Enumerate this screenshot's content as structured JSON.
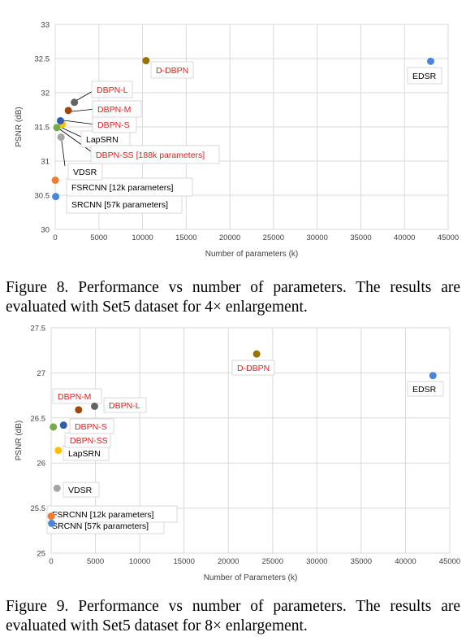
{
  "figures": [
    {
      "id": "fig8",
      "caption": "Figure 8. Performance vs number of parameters.  The results are evaluated with Set5 dataset for 4× enlargement.",
      "chart_data": {
        "type": "scatter",
        "xlabel": "Number of parameters (k)",
        "ylabel": "PSNR (dB)",
        "xlim": [
          0,
          45000
        ],
        "ylim": [
          30,
          33
        ],
        "xticks": [
          "0",
          "5000",
          "10000",
          "15000",
          "20000",
          "25000",
          "30000",
          "35000",
          "40000",
          "45000"
        ],
        "yticks": [
          "30",
          "30.5",
          "31",
          "31.5",
          "32",
          "32.5",
          "33"
        ],
        "grid": true,
        "points": [
          {
            "label": "SRCNN [57k parameters]",
            "x": 57,
            "y": 30.48,
            "color": "#4a86d8",
            "label_color": "#000000"
          },
          {
            "label": "FSRCNN [12k parameters]",
            "x": 12,
            "y": 30.72,
            "color": "#ed7d31",
            "label_color": "#000000"
          },
          {
            "label": "VDSR",
            "x": 668,
            "y": 31.35,
            "color": "#a5a5a5",
            "label_color": "#000000"
          },
          {
            "label": "LapSRN",
            "x": 812,
            "y": 31.54,
            "color": "#ffc000",
            "label_color": "#000000"
          },
          {
            "label": "DBPN-SS [188k parameters]",
            "x": 188,
            "y": 31.49,
            "color": "#70ad47",
            "label_color": "#e02020"
          },
          {
            "label": "DBPN-S",
            "x": 600,
            "y": 31.59,
            "color": "#2e5fa8",
            "label_color": "#e02020"
          },
          {
            "label": "DBPN-M",
            "x": 1500,
            "y": 31.74,
            "color": "#9e480e",
            "label_color": "#e02020"
          },
          {
            "label": "DBPN-L",
            "x": 2200,
            "y": 31.86,
            "color": "#636363",
            "label_color": "#e02020"
          },
          {
            "label": "D-DBPN",
            "x": 10400,
            "y": 32.47,
            "color": "#997300",
            "label_color": "#e02020"
          },
          {
            "label": "EDSR",
            "x": 43000,
            "y": 32.46,
            "color": "#4a86d8",
            "label_color": "#000000"
          }
        ]
      }
    },
    {
      "id": "fig9",
      "caption": "Figure 9. Performance vs number of parameters.  The results are evaluated with Set5 dataset for 8× enlargement.",
      "chart_data": {
        "type": "scatter",
        "xlabel": "Number of Parameters (k)",
        "ylabel": "PSNR (dB)",
        "xlim": [
          0,
          45000
        ],
        "ylim": [
          25,
          27.5
        ],
        "xticks": [
          "0",
          "5000",
          "10000",
          "15000",
          "20000",
          "25000",
          "30000",
          "35000",
          "40000",
          "45000"
        ],
        "yticks": [
          "25",
          "25.5",
          "26",
          "26.5",
          "27",
          "27.5"
        ],
        "grid": true,
        "points": [
          {
            "label": "SRCNN [57k parameters]",
            "x": 57,
            "y": 25.33,
            "color": "#4a86d8",
            "label_color": "#000000"
          },
          {
            "label": "FSRCNN [12k parameters]",
            "x": 12,
            "y": 25.41,
            "color": "#ed7d31",
            "label_color": "#000000"
          },
          {
            "label": "VDSR",
            "x": 668,
            "y": 25.72,
            "color": "#a5a5a5",
            "label_color": "#000000"
          },
          {
            "label": "LapSRN",
            "x": 812,
            "y": 26.14,
            "color": "#ffc000",
            "label_color": "#000000"
          },
          {
            "label": "DBPN-SS",
            "x": 250,
            "y": 26.4,
            "color": "#70ad47",
            "label_color": "#e02020"
          },
          {
            "label": "DBPN-S",
            "x": 1400,
            "y": 26.42,
            "color": "#2e5fa8",
            "label_color": "#e02020"
          },
          {
            "label": "DBPN-M",
            "x": 3100,
            "y": 26.59,
            "color": "#9e480e",
            "label_color": "#e02020"
          },
          {
            "label": "DBPN-L",
            "x": 4900,
            "y": 26.63,
            "color": "#636363",
            "label_color": "#e02020"
          },
          {
            "label": "D-DBPN",
            "x": 23200,
            "y": 27.21,
            "color": "#997300",
            "label_color": "#e02020"
          },
          {
            "label": "EDSR",
            "x": 43100,
            "y": 26.97,
            "color": "#4a86d8",
            "label_color": "#000000"
          }
        ]
      }
    }
  ]
}
